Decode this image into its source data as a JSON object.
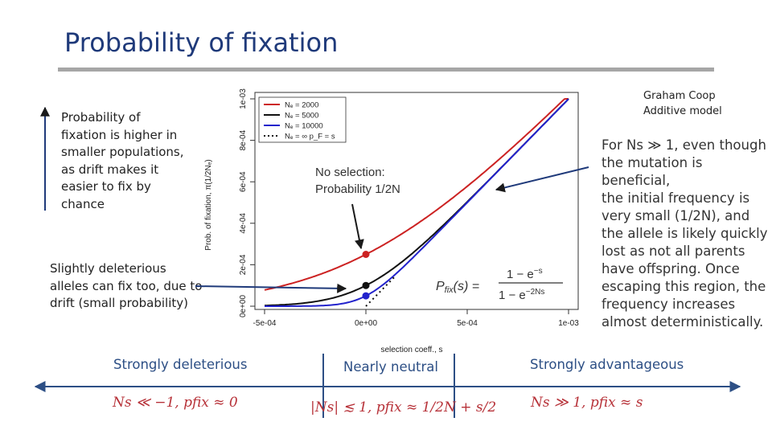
{
  "slide": {
    "title": "Probability of fixation",
    "credit_line1": "Graham Coop",
    "credit_line2": "Additive model",
    "note_top_left": [
      "Probability of",
      "fixation is higher in",
      "smaller populations,",
      "as drift makes it",
      "easier to fix by",
      "chance"
    ],
    "note_bottom_left": [
      "Slightly deleterious",
      "alleles can fix too, due to",
      "drift (small probability)"
    ],
    "note_right": [
      "For Ns ≫ 1, even though",
      "the mutation is beneficial,",
      "the initial frequency is",
      "very small (1/2N), and",
      "the allele is likely quickly",
      "lost as not all parents",
      "have offspring. Once",
      "escaping this region, the",
      "frequency increases",
      "almost deterministically."
    ],
    "regimes": {
      "deleterious_label": "Strongly deleterious",
      "neutral_label": "Nearly neutral",
      "advantageous_label": "Strongly advantageous",
      "deleterious_formula": "Ns ≪ −1, pfix ≈ 0",
      "neutral_formula": "|Ns| ≲ 1, pfix ≈ 1/2N + s/2",
      "advantageous_formula": "Ns ≫ 1, pfix ≈ s"
    },
    "colors": {
      "title": "#1f3a7a",
      "regime": "#2d4f85",
      "formula": "#b73239",
      "arrow": "#2d4f85"
    }
  },
  "chart_data": {
    "type": "line",
    "xlabel": "selection coeff., s",
    "ylabel": "Prob. of fixation, π(1/2Nₑ)",
    "xlim": [
      -0.0005,
      0.001
    ],
    "ylim": [
      0,
      0.001
    ],
    "x_ticks": [
      "-5e-04",
      "0e+00",
      "5e-04",
      "1e-03"
    ],
    "y_ticks": [
      "0e+00",
      "2e-04",
      "4e-04",
      "6e-04",
      "8e-04",
      "1e-03"
    ],
    "grid": false,
    "legend_position": "top-left",
    "series": [
      {
        "name": "Nₑ = 2000",
        "color": "#cc2222",
        "style": "solid",
        "N": 2000,
        "points": [
          [
            -0.0005,
            0.00011
          ],
          [
            -0.00025,
            0.00018
          ],
          [
            0,
            0.00025
          ],
          [
            0.00025,
            0.00038
          ],
          [
            0.0005,
            0.00058
          ],
          [
            0.00075,
            0.00077
          ],
          [
            0.001,
            0.00098
          ]
        ]
      },
      {
        "name": "Nₑ = 5000",
        "color": "#111111",
        "style": "solid",
        "N": 5000,
        "points": [
          [
            -0.0005,
            2e-06
          ],
          [
            -0.00025,
            2e-05
          ],
          [
            0,
            0.0001
          ],
          [
            0.00025,
            0.00028
          ],
          [
            0.0005,
            0.0005
          ],
          [
            0.00075,
            0.00075
          ],
          [
            0.001,
            0.00099
          ]
        ]
      },
      {
        "name": "Nₑ = 10000",
        "color": "#2222cc",
        "style": "solid",
        "N": 10000,
        "points": [
          [
            -0.0005,
            0
          ],
          [
            -0.00025,
            2e-06
          ],
          [
            0,
            5e-05
          ],
          [
            0.00025,
            0.00025
          ],
          [
            0.0005,
            0.0005
          ],
          [
            0.00075,
            0.00075
          ],
          [
            0.001,
            0.001
          ]
        ]
      },
      {
        "name": "Nₑ = ∞ p_F = s",
        "color": "#111111",
        "style": "dotted",
        "points": [
          [
            0,
            0
          ],
          [
            0.0001,
            0.0001
          ],
          [
            0.00014,
            0.00014
          ]
        ]
      }
    ],
    "highlight_points": [
      {
        "x": 0,
        "y": 0.00025,
        "color": "#cc2222"
      },
      {
        "x": 0,
        "y": 0.0001,
        "color": "#111111"
      },
      {
        "x": 0,
        "y": 5e-05,
        "color": "#2222cc"
      }
    ],
    "annotations": [
      {
        "text": "No selection:",
        "subtext": "Probability 1/2N"
      },
      {
        "text": "Pfix(s) = (1 − e^−s) / (1 − e^−2Ns)"
      }
    ]
  }
}
